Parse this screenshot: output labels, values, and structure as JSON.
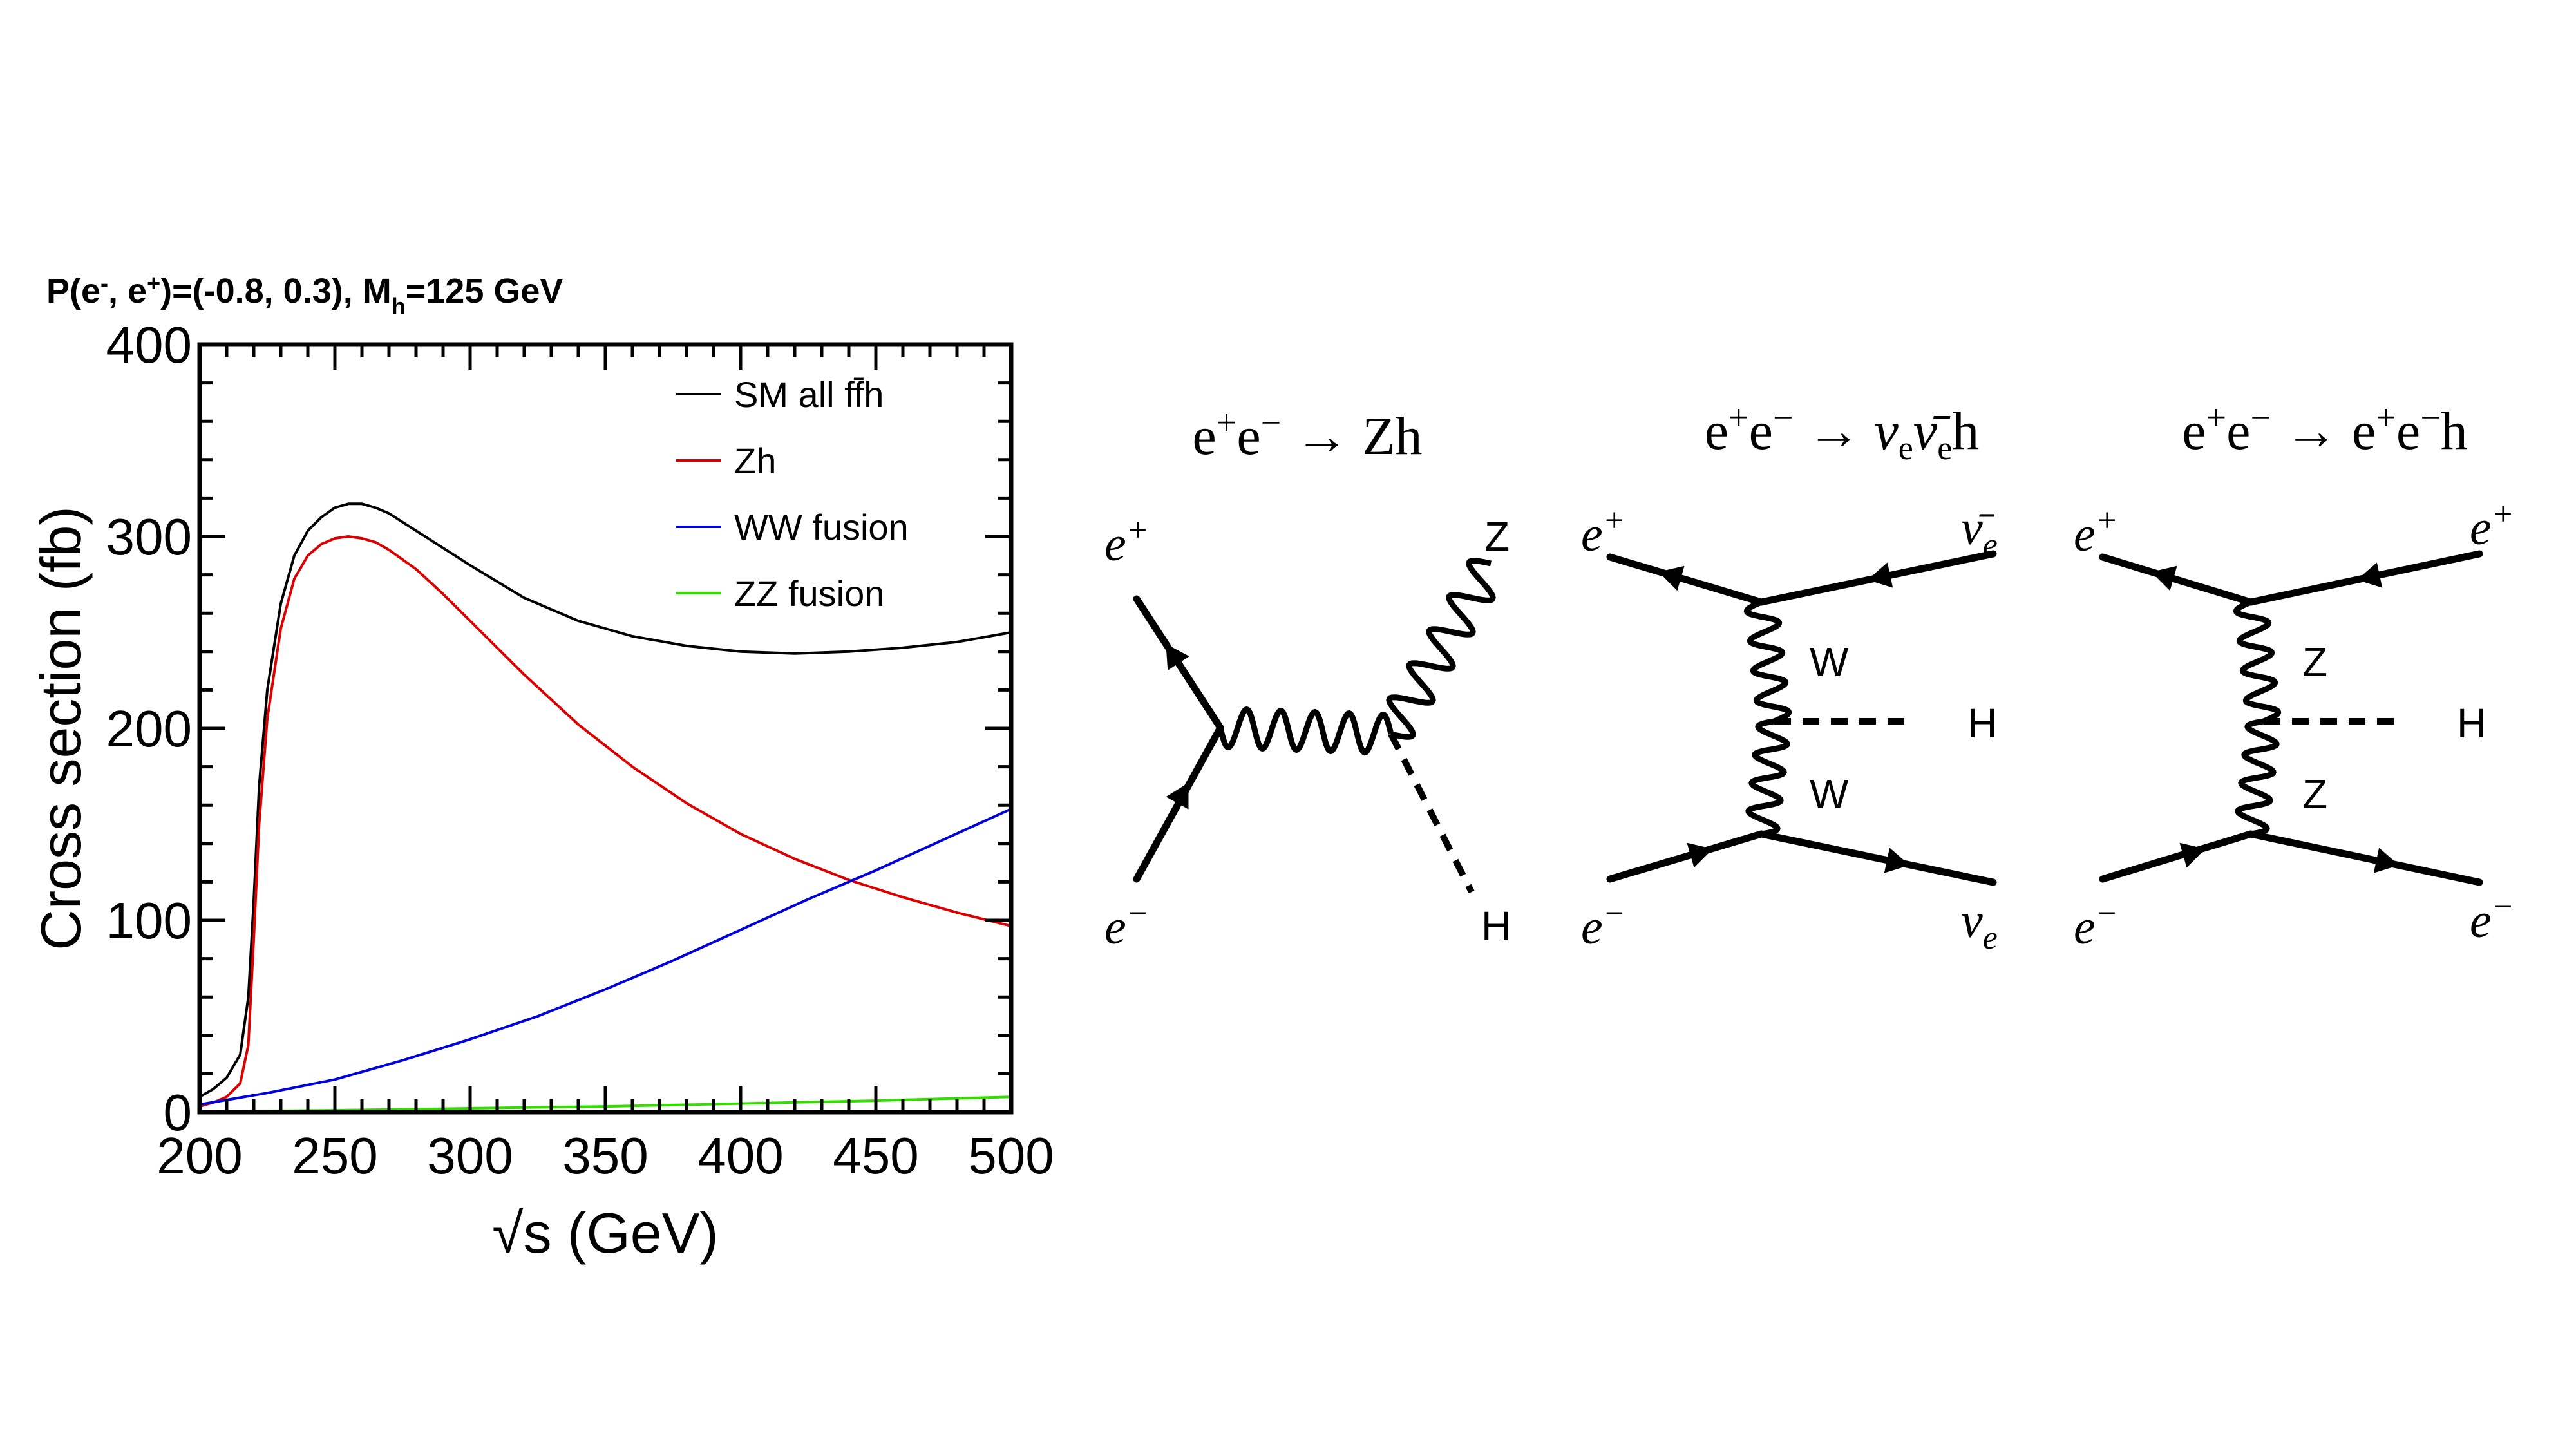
{
  "chart_data": {
    "type": "line",
    "title": "P(e⁻, e⁺)=(-0.8, 0.3), M_h=125 GeV",
    "title_parts": {
      "main": "P(e",
      "sup1": "-",
      "mid": ", e",
      "sup2": "+",
      "rest": ")=(-0.8, 0.3), M",
      "sub": "h",
      "end": "=125 GeV"
    },
    "xlabel": "√s (GeV)",
    "ylabel": "Cross section (fb)",
    "xlim": [
      200,
      500
    ],
    "ylim": [
      0,
      400
    ],
    "xticks": [
      200,
      250,
      300,
      350,
      400,
      450,
      500
    ],
    "yticks": [
      0,
      100,
      200,
      300,
      400
    ],
    "legend_position": "top-right",
    "grid": false,
    "series": [
      {
        "name": "SM all ff̄h",
        "color": "#000000",
        "x": [
          200,
          205,
          210,
          215,
          218,
          220,
          222,
          225,
          230,
          235,
          240,
          245,
          250,
          255,
          260,
          265,
          270,
          280,
          290,
          300,
          320,
          340,
          360,
          380,
          400,
          420,
          440,
          460,
          480,
          500
        ],
        "y": [
          8,
          12,
          18,
          30,
          60,
          110,
          170,
          220,
          265,
          290,
          303,
          310,
          315,
          317,
          317,
          315,
          312,
          303,
          294,
          285,
          268,
          256,
          248,
          243,
          240,
          239,
          240,
          242,
          245,
          250
        ]
      },
      {
        "name": "Zh",
        "color": "#dd0000",
        "x": [
          200,
          205,
          210,
          215,
          218,
          220,
          222,
          225,
          230,
          235,
          240,
          245,
          250,
          255,
          260,
          265,
          270,
          280,
          290,
          300,
          320,
          340,
          360,
          380,
          400,
          420,
          440,
          460,
          480,
          500
        ],
        "y": [
          3,
          5,
          8,
          15,
          35,
          90,
          150,
          205,
          252,
          278,
          290,
          296,
          299,
          300,
          299,
          297,
          293,
          283,
          270,
          256,
          228,
          202,
          180,
          161,
          145,
          132,
          121,
          112,
          104,
          97
        ]
      },
      {
        "name": "WW fusion",
        "color": "#0000dd",
        "x": [
          200,
          225,
          250,
          275,
          300,
          325,
          350,
          375,
          400,
          425,
          450,
          475,
          500
        ],
        "y": [
          4,
          10,
          17,
          27,
          38,
          50,
          64,
          79,
          95,
          111,
          126,
          142,
          158
        ]
      },
      {
        "name": "ZZ fusion",
        "color": "#33dd00",
        "x": [
          200,
          250,
          300,
          350,
          400,
          450,
          500
        ],
        "y": [
          0.3,
          1,
          2,
          3,
          4.5,
          6,
          8
        ]
      }
    ]
  },
  "diagrams": [
    {
      "title_parts": {
        "a": "e",
        "a_sup": "+",
        "b": "e",
        "b_sup": "−",
        "arrow": " → ",
        "rest": "Zh"
      },
      "labels": {
        "in_top": "e",
        "in_top_sup": "+",
        "in_bottom": "e",
        "in_bottom_sup": "−",
        "out_top": "Z",
        "out_bottom": "H"
      }
    },
    {
      "title_parts": {
        "a": "e",
        "a_sup": "+",
        "b": "e",
        "b_sup": "−",
        "arrow": " → ",
        "nu": "ν",
        "nu_sub": "e",
        "nubar": "ν̄",
        "nubar_sub": "e",
        "rest": "h"
      },
      "labels": {
        "in_top": "e",
        "in_top_sup": "+",
        "in_bottom": "e",
        "in_bottom_sup": "−",
        "out_top": "ν̄",
        "out_top_sub": "e",
        "out_bottom": "ν",
        "out_bottom_sub": "e",
        "boson_top": "W",
        "boson_bottom": "W",
        "higgs": "H"
      }
    },
    {
      "title_parts": {
        "a": "e",
        "a_sup": "+",
        "b": "e",
        "b_sup": "−",
        "arrow": " → ",
        "c": "e",
        "c_sup": "+",
        "d": "e",
        "d_sup": "−",
        "rest": "h"
      },
      "labels": {
        "in_top": "e",
        "in_top_sup": "+",
        "in_bottom": "e",
        "in_bottom_sup": "−",
        "out_top": "e",
        "out_top_sup": "+",
        "out_bottom": "e",
        "out_bottom_sup": "−",
        "boson_top": "Z",
        "boson_bottom": "Z",
        "higgs": "H"
      }
    }
  ]
}
